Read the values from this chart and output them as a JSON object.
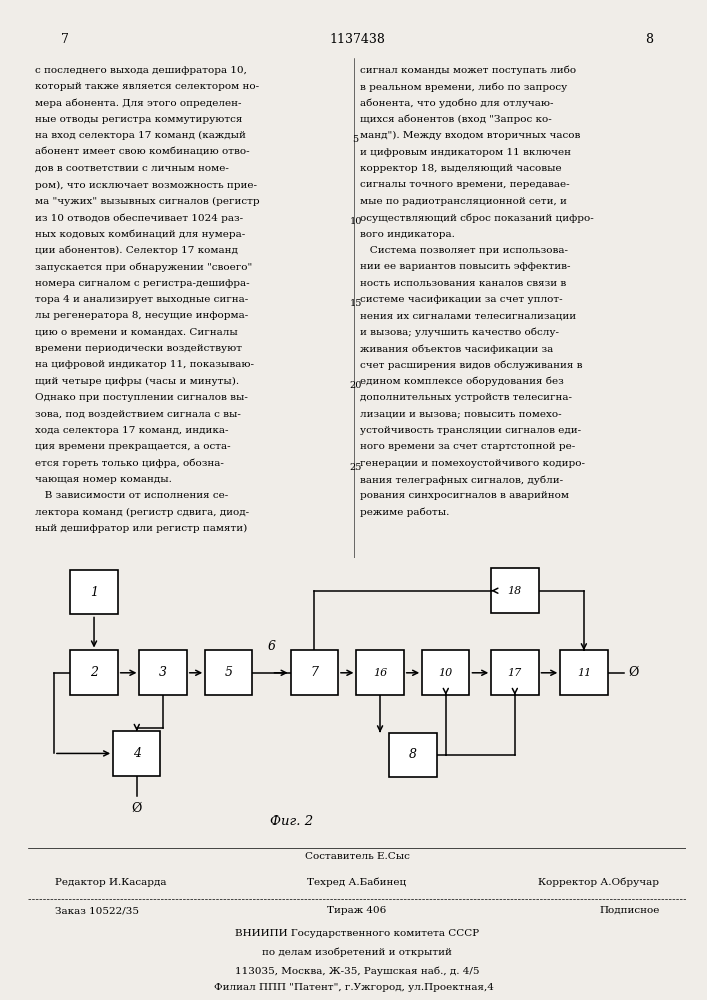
{
  "page_color": "#f0ede8",
  "header": {
    "left_num": "7",
    "center_text": "1137438",
    "right_num": "8"
  },
  "left_column_text": [
    "с последнего выхода дешифратора 10,",
    "который также является селектором но-",
    "мера абонента. Для этого определен-",
    "ные отводы регистра коммутируются",
    "на вход селектора 17 команд (каждый",
    "абонент имеет свою комбинацию отво-",
    "дов в соответствии с личным номе-",
    "ром), что исключает возможность прие-",
    "ма \"чужих\" вызывных сигналов (регистр",
    "из 10 отводов обеспечивает 1024 раз-",
    "ных кодовых комбинаций для нумера-",
    "ции абонентов). Селектор 17 команд",
    "запускается при обнаружении \"своего\"",
    "номера сигналом с регистра-дешифра-",
    "тора 4 и анализирует выходные сигна-",
    "лы регенератора 8, несущие информа-",
    "цию о времени и командах. Сигналы",
    "времени периодически воздействуют",
    "на цифровой индикатор 11, показываю-",
    "щий четыре цифры (часы и минуты).",
    "Однако при поступлении сигналов вы-",
    "зова, под воздействием сигнала с вы-",
    "хода селектора 17 команд, индика-",
    "ция времени прекращается, а оста-",
    "ется гореть только цифра, обозна-",
    "чающая номер команды.",
    "   В зависимости от исполнения се-",
    "лектора команд (регистр сдвига, диод-",
    "ный дешифратор или регистр памяти)"
  ],
  "line_numbers": {
    "4": "5",
    "9": "10",
    "14": "15",
    "19": "20",
    "24": "25"
  },
  "right_column_text": [
    "сигнал команды может поступать либо",
    "в реальном времени, либо по запросу",
    "абонента, что удобно для отлучаю-",
    "щихся абонентов (вход \"Запрос ко-",
    "манд\"). Между входом вторичных часов",
    "и цифровым индикатором 11 включен",
    "корректор 18, выделяющий часовые",
    "сигналы точного времени, передавае-",
    "мые по радиотрансляционной сети, и",
    "осуществляющий сброс показаний цифро-",
    "вого индикатора.",
    "   Система позволяет при использова-",
    "нии ее вариантов повысить эффектив-",
    "ность использования каналов связи в",
    "системе часификации за счет уплот-",
    "нения их сигналами телесигнализации",
    "и вызова; улучшить качество обслу-",
    "живания объектов часификации за",
    "счет расширения видов обслуживания в",
    "едином комплексе оборудования без",
    "дополнительных устройств телесигна-",
    "лизации и вызова; повысить помехо-",
    "устойчивость трансляции сигналов еди-",
    "ного времени за счет стартстопной ре-",
    "генерации и помехоустойчивого кодиро-",
    "вания телеграфных сигналов, дубли-",
    "рования синхросигналов в аварийном",
    "режиме работы."
  ],
  "footer": {
    "sestavitel": "Составитель Е.Сыс",
    "redaktor": "Редактор И.Касарда",
    "tehred": "Техред А.Бабинец",
    "korrektor": "Корректор А.Обручар",
    "zakaz": "Заказ 10522/35",
    "tirazh": "Тираж 406",
    "podpisnoe": "Подписное",
    "vniip1": "ВНИИПИ Государственного комитета СССР",
    "vniip2": "по делам изобретений и открытий",
    "vniip3": "113035, Москва, Ж-35, Раушская наб., д. 4/5",
    "filial": "Филиал ППП \"Патент\", г.Ужгород, ул.Проектная,4"
  }
}
